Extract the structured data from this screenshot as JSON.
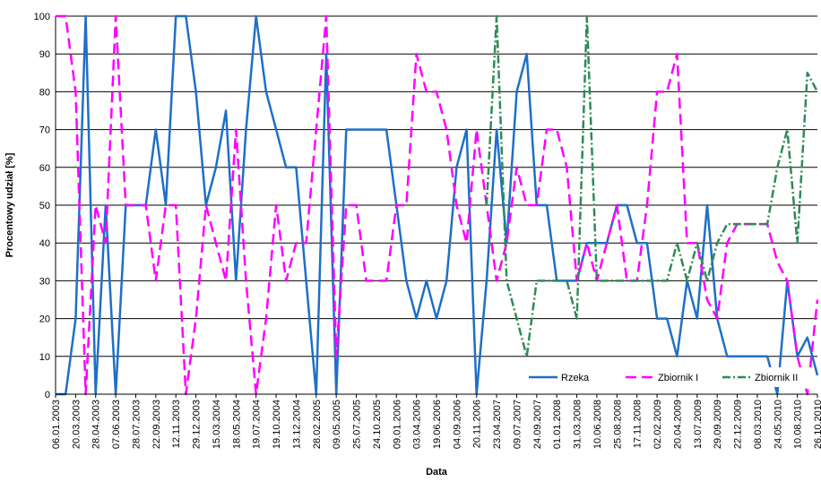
{
  "chart_data": {
    "type": "line",
    "x_label": "Data",
    "y_label": "Procentowy udział [%]",
    "categories": [
      "06.01.2003",
      null,
      "20.03.2003",
      null,
      "28.04.2003",
      null,
      "07.06.2003",
      null,
      "28.07.2003",
      null,
      "22.09.2003",
      null,
      "12.11.2003",
      null,
      "29.12.2003",
      null,
      "15.03.2004",
      null,
      "18.05.2004",
      null,
      "19.07.2004",
      null,
      "19.10.2004",
      null,
      "13.12.2004",
      null,
      "28.02.2005",
      null,
      "09.05.2005",
      null,
      "25.07.2005",
      null,
      "24.10.2005",
      null,
      "09.01.2006",
      null,
      "03.04.2006",
      null,
      "19.06.2006",
      null,
      "04.09.2006",
      null,
      "20.11.2006",
      null,
      "23.04.2007",
      null,
      "09.07.2007",
      null,
      "24.09.2007",
      null,
      "01.01.2008",
      null,
      "31.03.2008",
      null,
      "10.06.2008",
      null,
      "25.08.2008",
      null,
      "17.11.2008",
      null,
      "02.02.2009",
      null,
      "20.04.2009",
      null,
      "13.07.2009",
      null,
      "29.09.2009",
      null,
      "22.12.2009",
      null,
      "08.03.2010",
      null,
      "24.05.2010",
      null,
      "10.08.2010",
      null,
      "26.10.2010"
    ],
    "series": [
      {
        "name": "Rzeka",
        "color": "#1f6fc7",
        "dash": "solid",
        "values": [
          0,
          0,
          20,
          100,
          0,
          50,
          0,
          50,
          50,
          50,
          70,
          50,
          100,
          100,
          80,
          50,
          60,
          75,
          30,
          70,
          100,
          80,
          70,
          60,
          60,
          30,
          0,
          90,
          0,
          70,
          70,
          70,
          70,
          70,
          50,
          30,
          20,
          30,
          20,
          30,
          60,
          70,
          0,
          30,
          70,
          40,
          80,
          90,
          50,
          50,
          30,
          30,
          30,
          40,
          40,
          40,
          50,
          50,
          40,
          40,
          20,
          20,
          10,
          30,
          20,
          50,
          20,
          10,
          10,
          10,
          10,
          10,
          0,
          30,
          10,
          15,
          5
        ]
      },
      {
        "name": "Zbiornik I",
        "color": "#ff00ff",
        "dash": "dashed",
        "values": [
          100,
          100,
          80,
          0,
          50,
          40,
          100,
          50,
          50,
          50,
          30,
          50,
          50,
          0,
          20,
          50,
          40,
          30,
          70,
          30,
          0,
          20,
          50,
          30,
          40,
          40,
          70,
          100,
          10,
          50,
          50,
          30,
          30,
          30,
          50,
          50,
          90,
          80,
          80,
          70,
          50,
          40,
          70,
          50,
          30,
          40,
          60,
          50,
          50,
          70,
          70,
          60,
          30,
          40,
          30,
          40,
          50,
          30,
          30,
          50,
          80,
          80,
          90,
          40,
          40,
          25,
          20,
          40,
          45,
          45,
          45,
          45,
          35,
          30,
          10,
          0,
          25
        ]
      },
      {
        "name": "Zbiornik II",
        "color": "#2e8b57",
        "dash": "dashdot",
        "values": [
          null,
          null,
          null,
          null,
          null,
          null,
          null,
          null,
          null,
          null,
          null,
          null,
          null,
          null,
          null,
          null,
          null,
          null,
          null,
          null,
          null,
          null,
          null,
          null,
          null,
          null,
          null,
          null,
          null,
          null,
          null,
          null,
          null,
          null,
          null,
          null,
          null,
          null,
          null,
          null,
          null,
          null,
          null,
          50,
          100,
          30,
          20,
          10,
          30,
          30,
          30,
          30,
          20,
          100,
          30,
          30,
          30,
          30,
          30,
          30,
          30,
          30,
          40,
          30,
          40,
          30,
          40,
          45,
          45,
          45,
          45,
          45,
          60,
          70,
          40,
          85,
          80
        ]
      }
    ],
    "ylim": [
      0,
      100
    ],
    "yticks": [
      0,
      10,
      20,
      30,
      40,
      50,
      60,
      70,
      80,
      90,
      100
    ],
    "grid": true,
    "legend": "bottom-right"
  }
}
